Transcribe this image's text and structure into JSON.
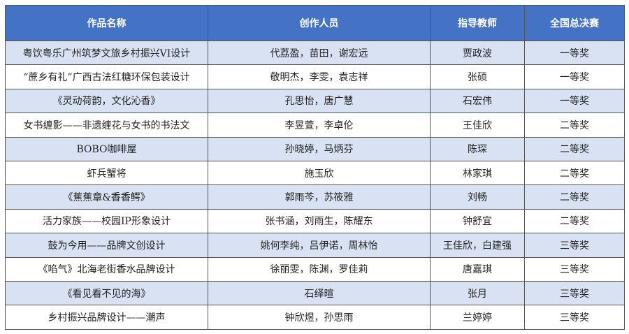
{
  "colors": {
    "header_bg": "#4472C4",
    "alt_row_bg": "#D9E2F3"
  },
  "headers": [
    "作品名称",
    "创作人员",
    "指导教师",
    "全国总决赛"
  ],
  "rows": [
    [
      "粤饮粤乐广州筑梦文旅乡村振兴VI设计",
      "代荔盈，苗田，谢宏远",
      "贾政波",
      "一等奖"
    ],
    [
      "“蔗乡有礼”广西古法红糖环保包装设计",
      "敬明杰，李雯，袁志祥",
      "张硕",
      "一等奖"
    ],
    [
      "《灵动荷韵，文化沁香》",
      "孔思怡，唐广慧",
      "石宏伟",
      "一等奖"
    ],
    [
      "女书缠影——非遗缠花与女书的书法文",
      "李昱萱，李卓伦",
      "王佳欣",
      "二等奖"
    ],
    [
      "BOBO咖啡屋",
      "孙晓婷，马炳芬",
      "陈琛",
      "二等奖"
    ],
    [
      "虾兵蟹将",
      "施玉欣",
      "林家琪",
      "二等奖"
    ],
    [
      "《蕉蕉章&香香鳄》",
      "郭雨芩，苏筱雅",
      "刘畅",
      "二等奖"
    ],
    [
      "活力家族——校园IP形象设计",
      "张书涵，刘雨生，陈耀东",
      "钟舒宜",
      "二等奖"
    ],
    [
      "鼓为今用——品牌文创设计",
      "姚何李纯，吕伊诺，周林怡",
      "王佳欣，白建强",
      "三等奖"
    ],
    [
      "《啗气》北海老街香水品牌设计",
      "徐丽雯，陈渊，罗佳莉",
      "唐嘉琪",
      "三等奖"
    ],
    [
      "《看见看不见的海》",
      "石绎暄",
      "张月",
      "三等奖"
    ],
    [
      "乡村振兴品牌设计——潮声",
      "钟欣煜，孙思雨",
      "兰婷婷",
      "三等奖"
    ]
  ]
}
